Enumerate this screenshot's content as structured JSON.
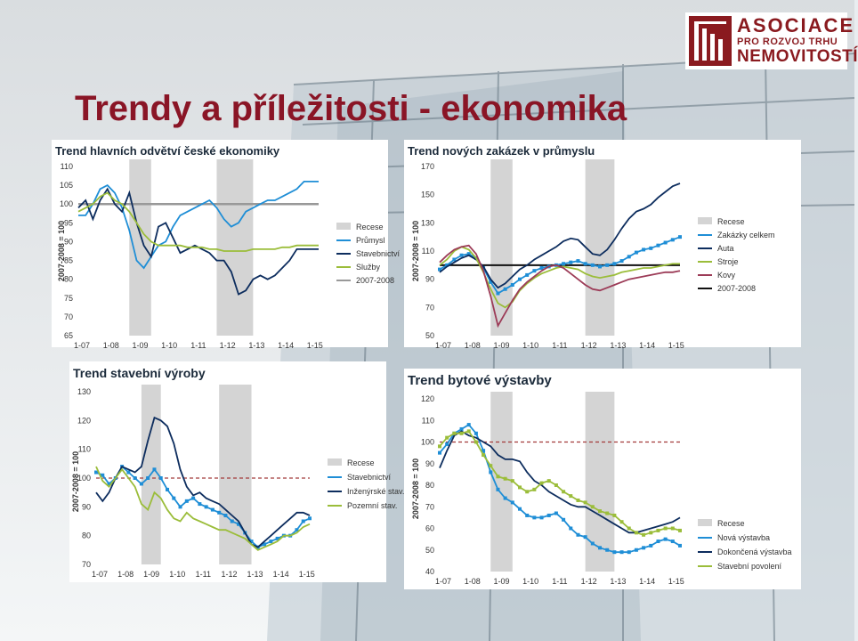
{
  "title": "Trendy a příležitosti - ekonomika",
  "logo": {
    "line1": "ASOCIACE",
    "line2": "PRO ROZVOJ TRHU",
    "line3": "NEMOVITOSTÍ"
  },
  "colors": {
    "title": "#8a1526",
    "recession": "#d4d4d4",
    "baseline": "#999999",
    "dashed": "#a23a3a"
  },
  "chart_data": [
    {
      "type": "line",
      "title": "Trend hlavních odvětví české ekonomiky",
      "ylabel": "2007-2008 = 100",
      "xlabel": "",
      "x": [
        2007.0,
        2007.25,
        2007.5,
        2007.75,
        2008.0,
        2008.25,
        2008.5,
        2008.75,
        2009.0,
        2009.25,
        2009.5,
        2009.75,
        2010.0,
        2010.25,
        2010.5,
        2010.75,
        2011.0,
        2011.25,
        2011.5,
        2011.75,
        2012.0,
        2012.25,
        2012.5,
        2012.75,
        2013.0,
        2013.25,
        2013.5,
        2013.75,
        2014.0,
        2014.25,
        2014.5,
        2014.75,
        2015.0,
        2015.25
      ],
      "xticks": [
        "1-07",
        "1-08",
        "1-09",
        "1-10",
        "1-11",
        "1-12",
        "1-13",
        "1-14",
        "1-15"
      ],
      "yticks": [
        65,
        70,
        75,
        80,
        85,
        90,
        95,
        100,
        105,
        110
      ],
      "ylim": [
        65,
        110
      ],
      "recessions": [
        [
          2008.75,
          2009.5
        ],
        [
          2011.75,
          2013.0
        ]
      ],
      "baseline": 100,
      "series": [
        {
          "name": "Průmysl",
          "color": "#1f8ed6",
          "values": [
            97,
            97,
            100,
            104,
            105,
            103,
            99,
            93,
            85,
            83,
            86,
            89,
            90,
            94,
            97,
            98,
            99,
            100,
            101,
            99,
            96,
            94,
            95,
            98,
            99,
            100,
            101,
            101,
            102,
            103,
            104,
            106,
            106,
            106
          ]
        },
        {
          "name": "Stavebnictví",
          "color": "#0d2d5e",
          "values": [
            99,
            101,
            96,
            101,
            104,
            100,
            98,
            103,
            95,
            89,
            86,
            94,
            95,
            91,
            87,
            88,
            89,
            88,
            87,
            85,
            85,
            82,
            76,
            77,
            80,
            81,
            80,
            81,
            83,
            85,
            88,
            88,
            88,
            88
          ]
        },
        {
          "name": "Služby",
          "color": "#9bbd3a",
          "values": [
            98,
            99,
            100,
            102,
            103,
            101,
            100,
            98,
            95,
            92,
            90,
            89,
            89,
            89,
            89,
            88.5,
            88.5,
            88.5,
            88,
            88,
            87.5,
            87.5,
            87.5,
            87.5,
            88,
            88,
            88,
            88,
            88.5,
            88.5,
            89,
            89,
            89,
            89
          ]
        }
      ],
      "legend": [
        "Recese",
        "Průmysl",
        "Stavebnictví",
        "Služby",
        "2007-2008"
      ]
    },
    {
      "type": "line",
      "title": "Trend nových zakázek v průmyslu",
      "ylabel": "2007-2008 = 100",
      "xlabel": "",
      "x": [
        2007.0,
        2007.25,
        2007.5,
        2007.75,
        2008.0,
        2008.25,
        2008.5,
        2008.75,
        2009.0,
        2009.25,
        2009.5,
        2009.75,
        2010.0,
        2010.25,
        2010.5,
        2010.75,
        2011.0,
        2011.25,
        2011.5,
        2011.75,
        2012.0,
        2012.25,
        2012.5,
        2012.75,
        2013.0,
        2013.25,
        2013.5,
        2013.75,
        2014.0,
        2014.25,
        2014.5,
        2014.75,
        2015.0,
        2015.25
      ],
      "xticks": [
        "1-07",
        "1-08",
        "1-09",
        "1-10",
        "1-11",
        "1-12",
        "1-13",
        "1-14",
        "1-15"
      ],
      "yticks": [
        50,
        70,
        90,
        110,
        130,
        150,
        170
      ],
      "ylim": [
        50,
        170
      ],
      "recessions": [
        [
          2008.75,
          2009.5
        ],
        [
          2012.0,
          2013.0
        ]
      ],
      "baseline": 100,
      "series": [
        {
          "name": "Zakázky celkem",
          "color": "#1f8ed6",
          "values": [
            97,
            100,
            104,
            107,
            108,
            105,
            98,
            88,
            80,
            83,
            86,
            90,
            93,
            96,
            98,
            99,
            100,
            101,
            102,
            103,
            101,
            100,
            99,
            100,
            101,
            103,
            106,
            109,
            111,
            112,
            114,
            116,
            118,
            120
          ]
        },
        {
          "name": "Auta",
          "color": "#0d2d5e",
          "values": [
            95,
            99,
            102,
            105,
            107,
            104,
            99,
            90,
            84,
            87,
            92,
            97,
            100,
            104,
            107,
            110,
            113,
            117,
            119,
            118,
            113,
            108,
            107,
            111,
            118,
            126,
            133,
            138,
            140,
            143,
            148,
            152,
            156,
            158
          ]
        },
        {
          "name": "Stroje",
          "color": "#9bbd3a",
          "values": [
            100,
            104,
            110,
            113,
            111,
            105,
            95,
            83,
            73,
            70,
            74,
            82,
            87,
            91,
            94,
            96,
            98,
            99,
            98,
            97,
            94,
            92,
            91,
            92,
            93,
            95,
            96,
            97,
            98,
            98,
            99,
            100,
            101,
            101
          ]
        },
        {
          "name": "Kovy",
          "color": "#9c3b57",
          "values": [
            102,
            107,
            111,
            113,
            114,
            108,
            96,
            78,
            57,
            66,
            75,
            83,
            88,
            92,
            96,
            99,
            100,
            98,
            94,
            90,
            86,
            83,
            82,
            84,
            86,
            88,
            90,
            91,
            92,
            93,
            94,
            95,
            95,
            96
          ]
        }
      ],
      "legend": [
        "Recese",
        "Zakázky celkem",
        "Auta",
        "Stroje",
        "Kovy",
        "2007-2008"
      ]
    },
    {
      "type": "line",
      "title": "Trend stavební výroby",
      "ylabel": "2007-2008 = 100",
      "xlabel": "",
      "x": [
        2007.0,
        2007.25,
        2007.5,
        2007.75,
        2008.0,
        2008.25,
        2008.5,
        2008.75,
        2009.0,
        2009.25,
        2009.5,
        2009.75,
        2010.0,
        2010.25,
        2010.5,
        2010.75,
        2011.0,
        2011.25,
        2011.5,
        2011.75,
        2012.0,
        2012.25,
        2012.5,
        2012.75,
        2013.0,
        2013.25,
        2013.5,
        2013.75,
        2014.0,
        2014.25,
        2014.5,
        2014.75,
        2015.0,
        2015.25
      ],
      "xticks": [
        "1-07",
        "1-08",
        "1-09",
        "1-10",
        "1-11",
        "1-12",
        "1-13",
        "1-14",
        "1-15"
      ],
      "yticks": [
        70,
        80,
        90,
        100,
        110,
        120,
        130
      ],
      "ylim": [
        70,
        130
      ],
      "recessions": [
        [
          2008.75,
          2009.5
        ],
        [
          2011.75,
          2013.0
        ]
      ],
      "baseline": 100,
      "series": [
        {
          "name": "Stavebnictví",
          "color": "#1f8ed6",
          "values": [
            102,
            101,
            98,
            100,
            104,
            102,
            100,
            98,
            100,
            103,
            100,
            96,
            93,
            90,
            92,
            93,
            91,
            90,
            89,
            88,
            87,
            85,
            84,
            81,
            78,
            76,
            77,
            78,
            79,
            80,
            80,
            82,
            85,
            86
          ]
        },
        {
          "name": "Inženýrské stav.",
          "color": "#0d2d5e",
          "values": [
            95,
            92,
            95,
            100,
            104,
            103,
            102,
            104,
            113,
            121,
            120,
            118,
            112,
            103,
            97,
            94,
            95,
            93,
            92,
            91,
            89,
            87,
            85,
            81,
            77,
            76,
            78,
            80,
            82,
            84,
            86,
            88,
            88,
            87
          ]
        },
        {
          "name": "Pozemní stav.",
          "color": "#9bbd3a",
          "values": [
            104,
            99,
            97,
            100,
            103,
            100,
            97,
            91,
            89,
            95,
            93,
            89,
            86,
            85,
            88,
            86,
            85,
            84,
            83,
            82,
            82,
            81,
            80,
            79,
            77,
            75,
            76,
            77,
            78,
            80,
            80,
            81,
            83,
            84
          ]
        }
      ],
      "legend": [
        "Recese",
        "Stavebnictví",
        "Inženýrské stav.",
        "Pozemní stav."
      ]
    },
    {
      "type": "line",
      "title": "Trend bytové výstavby",
      "ylabel": "2007-2008 = 100",
      "xlabel": "",
      "x": [
        2007.0,
        2007.25,
        2007.5,
        2007.75,
        2008.0,
        2008.25,
        2008.5,
        2008.75,
        2009.0,
        2009.25,
        2009.5,
        2009.75,
        2010.0,
        2010.25,
        2010.5,
        2010.75,
        2011.0,
        2011.25,
        2011.5,
        2011.75,
        2012.0,
        2012.25,
        2012.5,
        2012.75,
        2013.0,
        2013.25,
        2013.5,
        2013.75,
        2014.0,
        2014.25,
        2014.5,
        2014.75,
        2015.0,
        2015.25
      ],
      "xticks": [
        "1-07",
        "1-08",
        "1-09",
        "1-10",
        "1-11",
        "1-12",
        "1-13",
        "1-14",
        "1-15"
      ],
      "yticks": [
        40,
        50,
        60,
        70,
        80,
        90,
        100,
        110,
        120
      ],
      "ylim": [
        40,
        120
      ],
      "recessions": [
        [
          2008.75,
          2009.5
        ],
        [
          2012.0,
          2013.0
        ]
      ],
      "baseline": 100,
      "series": [
        {
          "name": "Nová výstavba",
          "color": "#1f8ed6",
          "values": [
            95,
            99,
            104,
            106,
            108,
            104,
            96,
            86,
            78,
            74,
            72,
            69,
            66,
            65,
            65,
            66,
            67,
            64,
            60,
            57,
            56,
            53,
            51,
            50,
            49,
            49,
            49,
            50,
            51,
            52,
            54,
            55,
            54,
            52
          ]
        },
        {
          "name": "Dokončená výstavba",
          "color": "#0d2d5e",
          "values": [
            88,
            96,
            103,
            105,
            103,
            102,
            100,
            98,
            94,
            92,
            92,
            91,
            86,
            82,
            80,
            77,
            75,
            73,
            71,
            70,
            70,
            68,
            66,
            64,
            62,
            60,
            58,
            58,
            59,
            60,
            61,
            62,
            63,
            65
          ]
        },
        {
          "name": "Stavební povolení",
          "color": "#9bbd3a",
          "values": [
            98,
            102,
            104,
            104,
            105,
            100,
            94,
            89,
            84,
            83,
            82,
            79,
            77,
            78,
            81,
            82,
            80,
            77,
            75,
            73,
            72,
            70,
            68,
            67,
            66,
            63,
            60,
            58,
            57,
            58,
            59,
            60,
            60,
            59
          ]
        }
      ],
      "legend": [
        "Recese",
        "Nová výstavba",
        "Dokončená výstavba",
        "Stavební povolení"
      ]
    }
  ]
}
